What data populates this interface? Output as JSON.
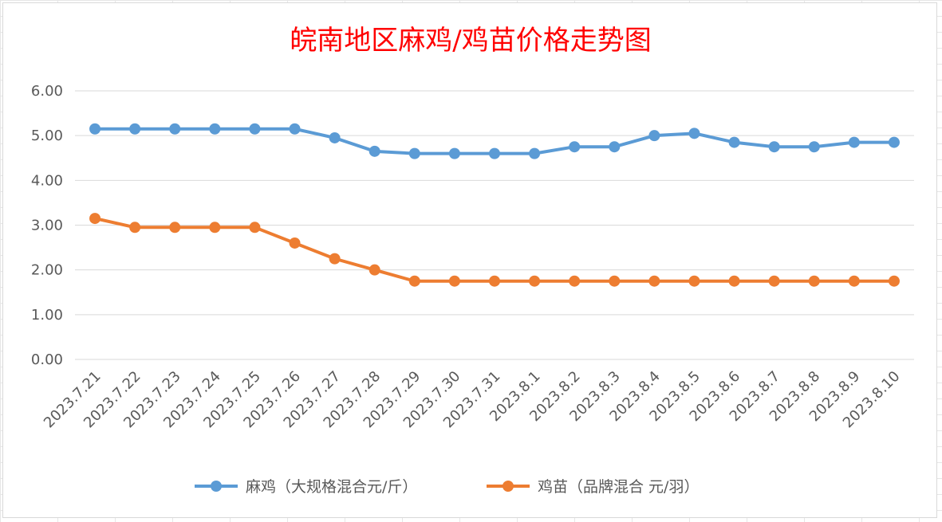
{
  "chart_data": {
    "type": "line",
    "title": "皖南地区麻鸡/鸡苗价格走势图",
    "xlabel": "",
    "ylabel": "",
    "ylim": [
      0,
      6
    ],
    "yticks": [
      "0.00",
      "1.00",
      "2.00",
      "3.00",
      "4.00",
      "5.00",
      "6.00"
    ],
    "grid": true,
    "legend_position": "bottom",
    "categories": [
      "2023.7.21",
      "2023.7.22",
      "2023.7.23",
      "2023.7.24",
      "2023.7.25",
      "2023.7.26",
      "2023.7.27",
      "2023.7.28",
      "2023.7.29",
      "2023.7.30",
      "2023.7.31",
      "2023.8.1",
      "2023.8.2",
      "2023.8.3",
      "2023.8.4",
      "2023.8.5",
      "2023.8.6",
      "2023.8.7",
      "2023.8.8",
      "2023.8.9",
      "2023.8.10"
    ],
    "series": [
      {
        "name": "麻鸡（大规格混合元/斤）",
        "color": "#5b9bd5",
        "values": [
          5.15,
          5.15,
          5.15,
          5.15,
          5.15,
          5.15,
          4.95,
          4.65,
          4.6,
          4.6,
          4.6,
          4.6,
          4.75,
          4.75,
          5.0,
          5.05,
          4.85,
          4.75,
          4.75,
          4.85,
          4.85
        ]
      },
      {
        "name": "鸡苗（品牌混合 元/羽）",
        "color": "#ed7d31",
        "values": [
          3.15,
          2.95,
          2.95,
          2.95,
          2.95,
          2.6,
          2.25,
          2.0,
          1.75,
          1.75,
          1.75,
          1.75,
          1.75,
          1.75,
          1.75,
          1.75,
          1.75,
          1.75,
          1.75,
          1.75,
          1.75
        ]
      }
    ]
  }
}
